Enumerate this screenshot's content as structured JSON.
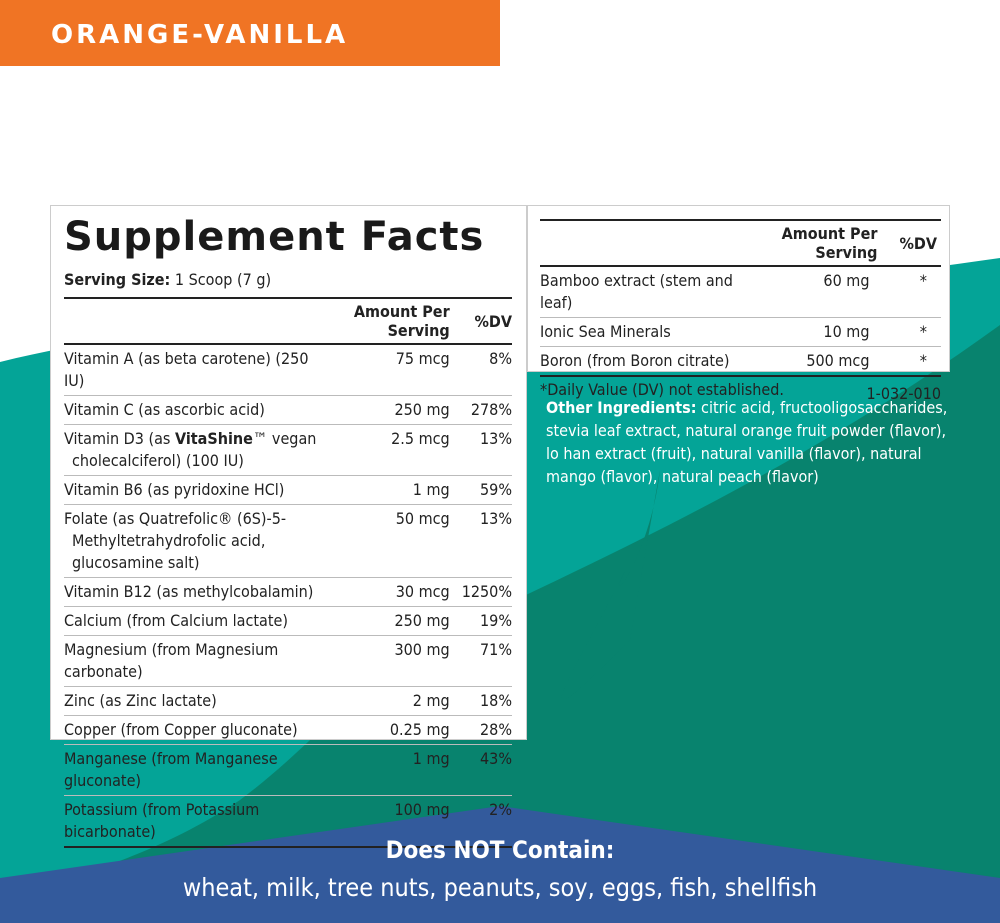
{
  "flavor": "ORANGE-VANILLA",
  "colors": {
    "orange": "#f07424",
    "teal_light": "#04a497",
    "teal_dark": "#08836e",
    "blue": "#335a9c"
  },
  "facts": {
    "title": "Supplement Facts",
    "serving_label": "Serving Size:",
    "serving_value": "1 Scoop (7 g)",
    "header_amount": "Amount Per Serving",
    "header_dv": "%DV",
    "rows": [
      {
        "name": "Vitamin A (as beta carotene) (250 IU)",
        "amount": "75 mcg",
        "dv": "8%"
      },
      {
        "name": "Vitamin C (as ascorbic acid)",
        "amount": "250 mg",
        "dv": "278%"
      },
      {
        "name_pre": "Vitamin D3 (as ",
        "name_bold": "VitaShine",
        "name_post": "™ vegan",
        "name_cont": "cholecalciferol) (100 IU)",
        "amount": "2.5 mcg",
        "dv": "13%"
      },
      {
        "name": "Vitamin B6 (as pyridoxine HCl)",
        "amount": "1 mg",
        "dv": "59%"
      },
      {
        "name": "Folate (as Quatrefolic® (6S)-5-",
        "name_cont": "Methyltetrahydrofolic acid,",
        "name_cont2": "glucosamine salt)",
        "amount": "50 mcg",
        "dv": "13%"
      },
      {
        "name": "Vitamin B12 (as methylcobalamin)",
        "amount": "30 mcg",
        "dv": "1250%"
      },
      {
        "name": "Calcium (from Calcium lactate)",
        "amount": "250 mg",
        "dv": "19%"
      },
      {
        "name": "Magnesium (from Magnesium carbonate)",
        "amount": "300 mg",
        "dv": "71%"
      },
      {
        "name": "Zinc (as Zinc lactate)",
        "amount": "2 mg",
        "dv": "18%"
      },
      {
        "name": "Copper (from Copper gluconate)",
        "amount": "0.25 mg",
        "dv": "28%"
      },
      {
        "name": "Manganese (from Manganese gluconate)",
        "amount": "1 mg",
        "dv": "43%"
      },
      {
        "name": "Potassium (from Potassium bicarbonate)",
        "amount": "100 mg",
        "dv": "2%"
      }
    ]
  },
  "facts2": {
    "header_amount": "Amount Per Serving",
    "header_dv": "%DV",
    "rows": [
      {
        "name": "Bamboo extract (stem and leaf)",
        "amount": "60 mg",
        "dv": "*"
      },
      {
        "name": "Ionic Sea Minerals",
        "amount": "10 mg",
        "dv": "*"
      },
      {
        "name": "Boron (from Boron citrate)",
        "amount": "500 mcg",
        "dv": "*"
      }
    ],
    "footnote": "*Daily Value (DV) not established.",
    "code": "1-032-010"
  },
  "other_ingredients": {
    "label": "Other Ingredients:",
    "text": " citric acid, fructooligosaccharides, stevia leaf extract, natural orange fruit powder (flavor), lo han extract (fruit), natural vanilla (flavor), natural mango (flavor), natural peach (flavor)"
  },
  "free_from": {
    "heading": "Does NOT Contain:",
    "list": "wheat, milk, tree nuts, peanuts, soy, eggs, fish, shellfish"
  }
}
